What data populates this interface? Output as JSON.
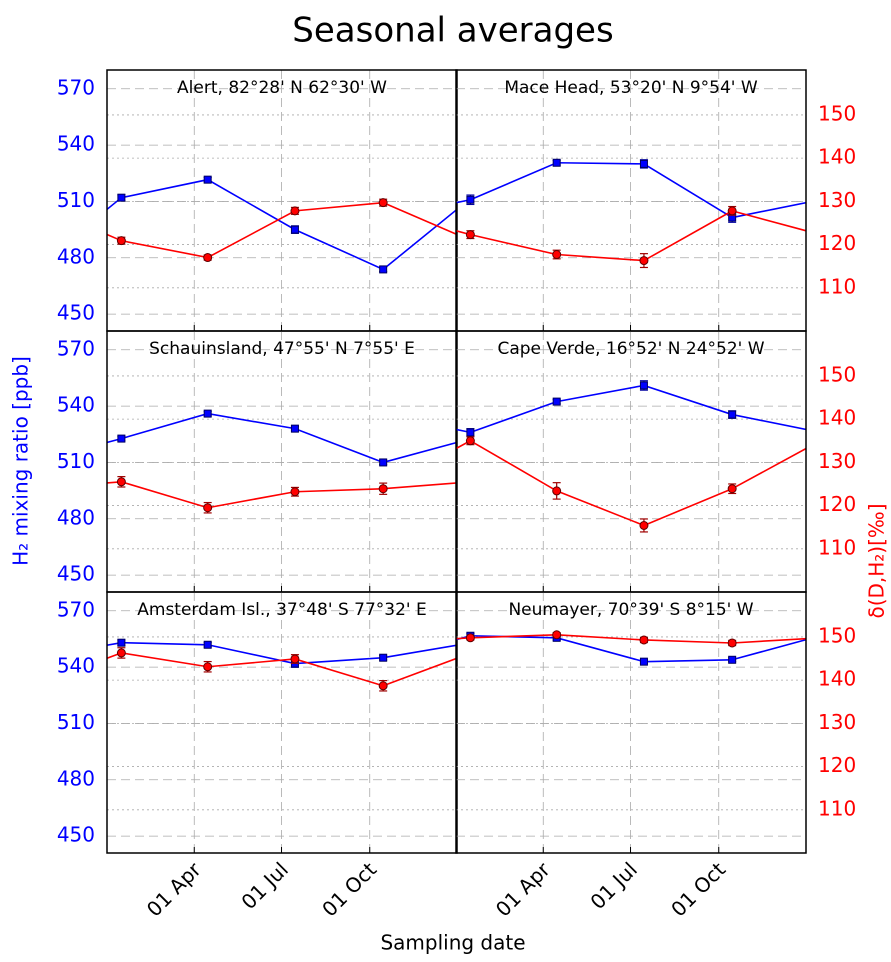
{
  "title": "Seasonal averages",
  "xlabel": "Sampling date",
  "ylabel": "H₂ mixing ratio [ppb]",
  "y2label": "δ(D,H₂)[‰]",
  "chart_data": [
    {
      "type": "line",
      "title": "Alert, 82°28' N 62°30' W",
      "x": [
        15,
        105,
        196,
        288
      ],
      "xlim": [
        0,
        365
      ],
      "xticks": [
        {
          "value": 91,
          "label": "01 Apr"
        },
        {
          "value": 182,
          "label": "01 Jul"
        },
        {
          "value": 274,
          "label": "01 Oct"
        }
      ],
      "ylim": [
        441,
        580
      ],
      "yticks": [
        450,
        480,
        510,
        540,
        570
      ],
      "y2lim": [
        100,
        160.4
      ],
      "y2ticks": [
        110,
        120,
        130,
        140,
        150
      ],
      "grid": true,
      "series": [
        {
          "color": "#0000ff",
          "marker": "square",
          "values": [
            512,
            521.6,
            495,
            473.8
          ],
          "errors": [
            1.5,
            1.2,
            2,
            1.2
          ]
        },
        {
          "color": "#ff0000",
          "marker": "circle",
          "axis": "y2",
          "values": [
            120.9,
            117,
            127.8,
            129.7
          ],
          "errors": [
            0.8,
            0.6,
            0.8,
            0.8
          ]
        }
      ]
    },
    {
      "type": "line",
      "title": "Mace Head, 53°20' N 9°54' W",
      "x": [
        15,
        105,
        196,
        288
      ],
      "xlim": [
        0,
        365
      ],
      "xticks": [
        {
          "value": 91,
          "label": "01 Apr"
        },
        {
          "value": 182,
          "label": "01 Jul"
        },
        {
          "value": 274,
          "label": "01 Oct"
        }
      ],
      "ylim": [
        441,
        580
      ],
      "yticks": [
        450,
        480,
        510,
        540,
        570
      ],
      "y2lim": [
        100,
        160.4
      ],
      "y2ticks": [
        110,
        120,
        130,
        140,
        150
      ],
      "grid": true,
      "series": [
        {
          "color": "#0000ff",
          "marker": "square",
          "values": [
            510.9,
            530.6,
            530,
            501.4
          ],
          "errors": [
            2.5,
            1.2,
            2.2,
            2.5
          ]
        },
        {
          "color": "#ff0000",
          "marker": "circle",
          "axis": "y2",
          "values": [
            122.3,
            117.7,
            116.3,
            127.8
          ],
          "errors": [
            0.9,
            1,
            1.6,
            1
          ]
        }
      ]
    },
    {
      "type": "line",
      "title": "Schauinsland, 47°55' N 7°55' E",
      "x": [
        15,
        105,
        196,
        288
      ],
      "xlim": [
        0,
        365
      ],
      "xticks": [
        {
          "value": 91,
          "label": "01 Apr"
        },
        {
          "value": 182,
          "label": "01 Jul"
        },
        {
          "value": 274,
          "label": "01 Oct"
        }
      ],
      "ylim": [
        441,
        580
      ],
      "yticks": [
        450,
        480,
        510,
        540,
        570
      ],
      "y2lim": [
        100,
        160.4
      ],
      "y2ticks": [
        110,
        120,
        130,
        140,
        150
      ],
      "grid": true,
      "series": [
        {
          "color": "#0000ff",
          "marker": "square",
          "values": [
            522.7,
            536,
            528,
            510
          ],
          "errors": [
            1.2,
            1.2,
            1.2,
            1.2
          ]
        },
        {
          "color": "#ff0000",
          "marker": "circle",
          "axis": "y2",
          "values": [
            125.5,
            119.5,
            123.2,
            123.9
          ],
          "errors": [
            1.2,
            1.2,
            1,
            1.3
          ]
        }
      ]
    },
    {
      "type": "line",
      "title": "Cape Verde, 16°52' N 24°52' W",
      "x": [
        15,
        105,
        196,
        288
      ],
      "xlim": [
        0,
        365
      ],
      "xticks": [
        {
          "value": 91,
          "label": "01 Apr"
        },
        {
          "value": 182,
          "label": "01 Jul"
        },
        {
          "value": 274,
          "label": "01 Oct"
        }
      ],
      "ylim": [
        441,
        580
      ],
      "yticks": [
        450,
        480,
        510,
        540,
        570
      ],
      "y2lim": [
        100,
        160.4
      ],
      "y2ticks": [
        110,
        120,
        130,
        140,
        150
      ],
      "grid": true,
      "series": [
        {
          "color": "#0000ff",
          "marker": "square",
          "values": [
            526,
            542.4,
            551,
            535.5
          ],
          "errors": [
            2,
            1.2,
            2.5,
            2
          ]
        },
        {
          "color": "#ff0000",
          "marker": "circle",
          "axis": "y2",
          "values": [
            135,
            123.4,
            115.4,
            123.9
          ],
          "errors": [
            0.9,
            1.9,
            1.5,
            1.1
          ]
        }
      ]
    },
    {
      "type": "line",
      "title": "Amsterdam Isl., 37°48' S 77°32' E",
      "x": [
        15,
        105,
        196,
        288
      ],
      "xlim": [
        0,
        365
      ],
      "xticks": [
        {
          "value": 91,
          "label": "01 Apr"
        },
        {
          "value": 182,
          "label": "01 Jul"
        },
        {
          "value": 274,
          "label": "01 Oct"
        }
      ],
      "ylim": [
        441,
        580
      ],
      "yticks": [
        450,
        480,
        510,
        540,
        570
      ],
      "y2lim": [
        100,
        160.4
      ],
      "y2ticks": [
        110,
        120,
        130,
        140,
        150
      ],
      "grid": true,
      "series": [
        {
          "color": "#0000ff",
          "marker": "square",
          "values": [
            553,
            551.9,
            541.9,
            545
          ],
          "errors": [
            1.5,
            1.2,
            2,
            1.2
          ]
        },
        {
          "color": "#ff0000",
          "marker": "circle",
          "axis": "y2",
          "values": [
            146.3,
            143.1,
            144.9,
            138.7
          ],
          "errors": [
            1.2,
            1.2,
            1,
            1.2
          ]
        }
      ]
    },
    {
      "type": "line",
      "title": "Neumayer, 70°39' S 8°15' W",
      "x": [
        15,
        105,
        196,
        288
      ],
      "xlim": [
        0,
        365
      ],
      "xticks": [
        {
          "value": 91,
          "label": "01 Apr"
        },
        {
          "value": 182,
          "label": "01 Jul"
        },
        {
          "value": 274,
          "label": "01 Oct"
        }
      ],
      "ylim": [
        441,
        580
      ],
      "yticks": [
        450,
        480,
        510,
        540,
        570
      ],
      "y2lim": [
        100,
        160.4
      ],
      "y2ticks": [
        110,
        120,
        130,
        140,
        150
      ],
      "grid": true,
      "series": [
        {
          "color": "#0000ff",
          "marker": "square",
          "values": [
            556.7,
            555.6,
            542.9,
            543.9
          ],
          "errors": [
            1.2,
            1.2,
            1,
            1
          ]
        },
        {
          "color": "#ff0000",
          "marker": "circle",
          "axis": "y2",
          "values": [
            149.8,
            150.5,
            149.3,
            148.6
          ],
          "errors": [
            0.5,
            0.5,
            0.6,
            0.6
          ]
        }
      ]
    }
  ]
}
